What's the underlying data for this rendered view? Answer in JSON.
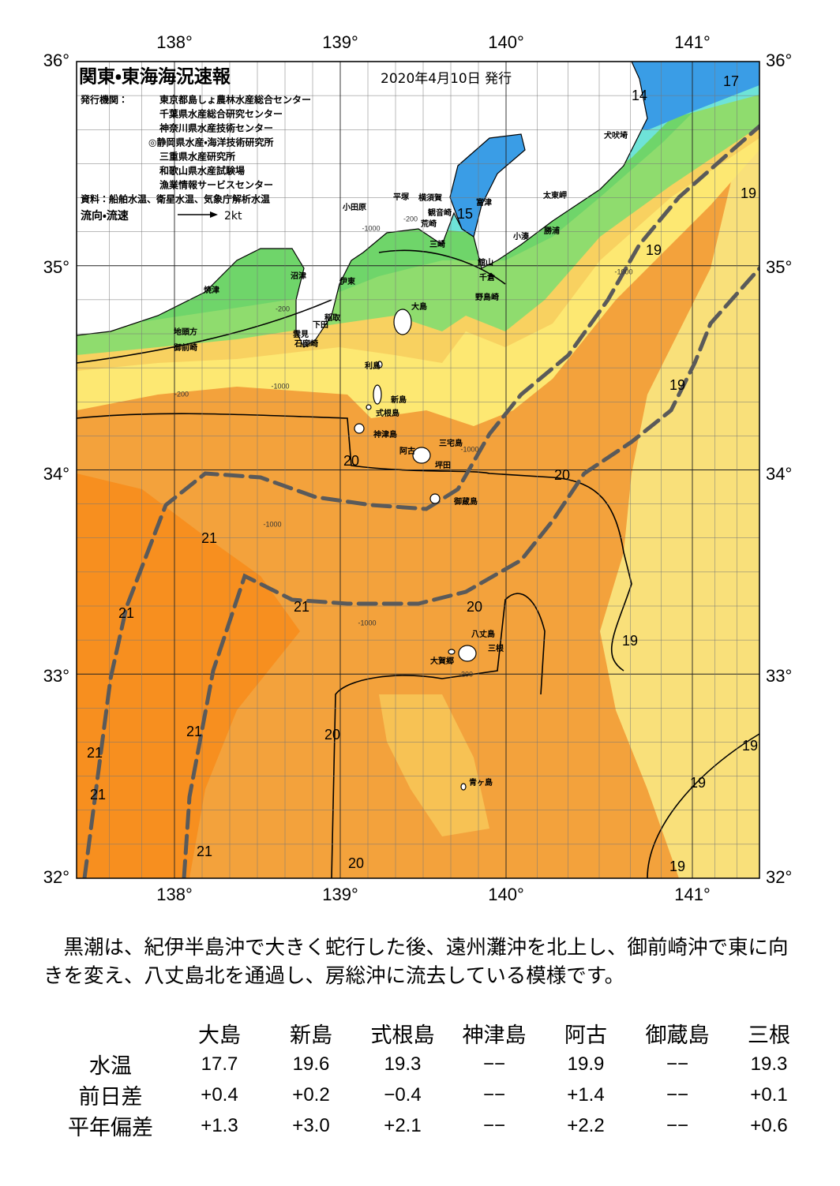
{
  "header": {
    "title": "関東・東海海況速報",
    "date": "2020年4月10日 発行",
    "issuer_label": "発行機関：",
    "issuers": [
      "東京都島しょ農林水産総合センター",
      "千葉県水産総合研究センター",
      "神奈川県水産技術センター",
      "◎静岡県水産・海洋技術研究所",
      "三重県水産研究所",
      "和歌山県水産試験場",
      "漁業情報サービスセンター"
    ],
    "source": "資料：船舶水温、衛星水温、気象庁解析水温",
    "current_label": "流向・流速",
    "current_scale": "2kt"
  },
  "map": {
    "lon_labels": [
      "138°",
      "139°",
      "140°",
      "141°"
    ],
    "lat_labels": [
      "36°",
      "35°",
      "34°",
      "33°",
      "32°"
    ],
    "places": [
      "小田原",
      "平塚",
      "横須賀",
      "観音崎",
      "富津",
      "荒崎",
      "三崎",
      "太東岬",
      "勝浦",
      "小湊",
      "館山",
      "千倉",
      "野島崎",
      "犬吠埼",
      "沼津",
      "伊東",
      "焼津",
      "稲取",
      "下田",
      "雲見",
      "石廊崎",
      "地頭方",
      "御前崎",
      "大島",
      "利島",
      "新島",
      "式根島",
      "神津島",
      "三宅島",
      "阿古",
      "坪田",
      "御蔵島",
      "八丈島",
      "三根",
      "大賀郷",
      "青ヶ島"
    ],
    "isotherm_labels": [
      "17",
      "14",
      "15",
      "19",
      "19",
      "19",
      "20",
      "20",
      "21",
      "21",
      "21",
      "20",
      "19",
      "21",
      "20",
      "21",
      "19",
      "19",
      "21",
      "21",
      "20",
      "19"
    ],
    "depth_labels": [
      "-200",
      "-1000",
      "-200",
      "-1000",
      "-200",
      "-1000",
      "-1000",
      "-1000",
      "-1000",
      "-200"
    ]
  },
  "description": "黒潮は、紀伊半島沖で大きく蛇行した後、遠州灘沖を北上し、御前崎沖で東に向きを変え、八丈島北を通過し、房総沖に流去している模様です。",
  "table": {
    "columns": [
      "大島",
      "新島",
      "式根島",
      "神津島",
      "阿古",
      "御蔵島",
      "三根"
    ],
    "rows": [
      {
        "label": "水温",
        "values": [
          "17.7",
          "19.6",
          "19.3",
          "−−",
          "19.9",
          "−−",
          "19.3"
        ]
      },
      {
        "label": "前日差",
        "values": [
          "+0.4",
          "+0.2",
          "−0.4",
          "−−",
          "+1.4",
          "−−",
          "+0.1"
        ]
      },
      {
        "label": "平年偏差",
        "values": [
          "+1.3",
          "+3.0",
          "+2.1",
          "−−",
          "+2.2",
          "−−",
          "+0.6"
        ]
      }
    ]
  }
}
